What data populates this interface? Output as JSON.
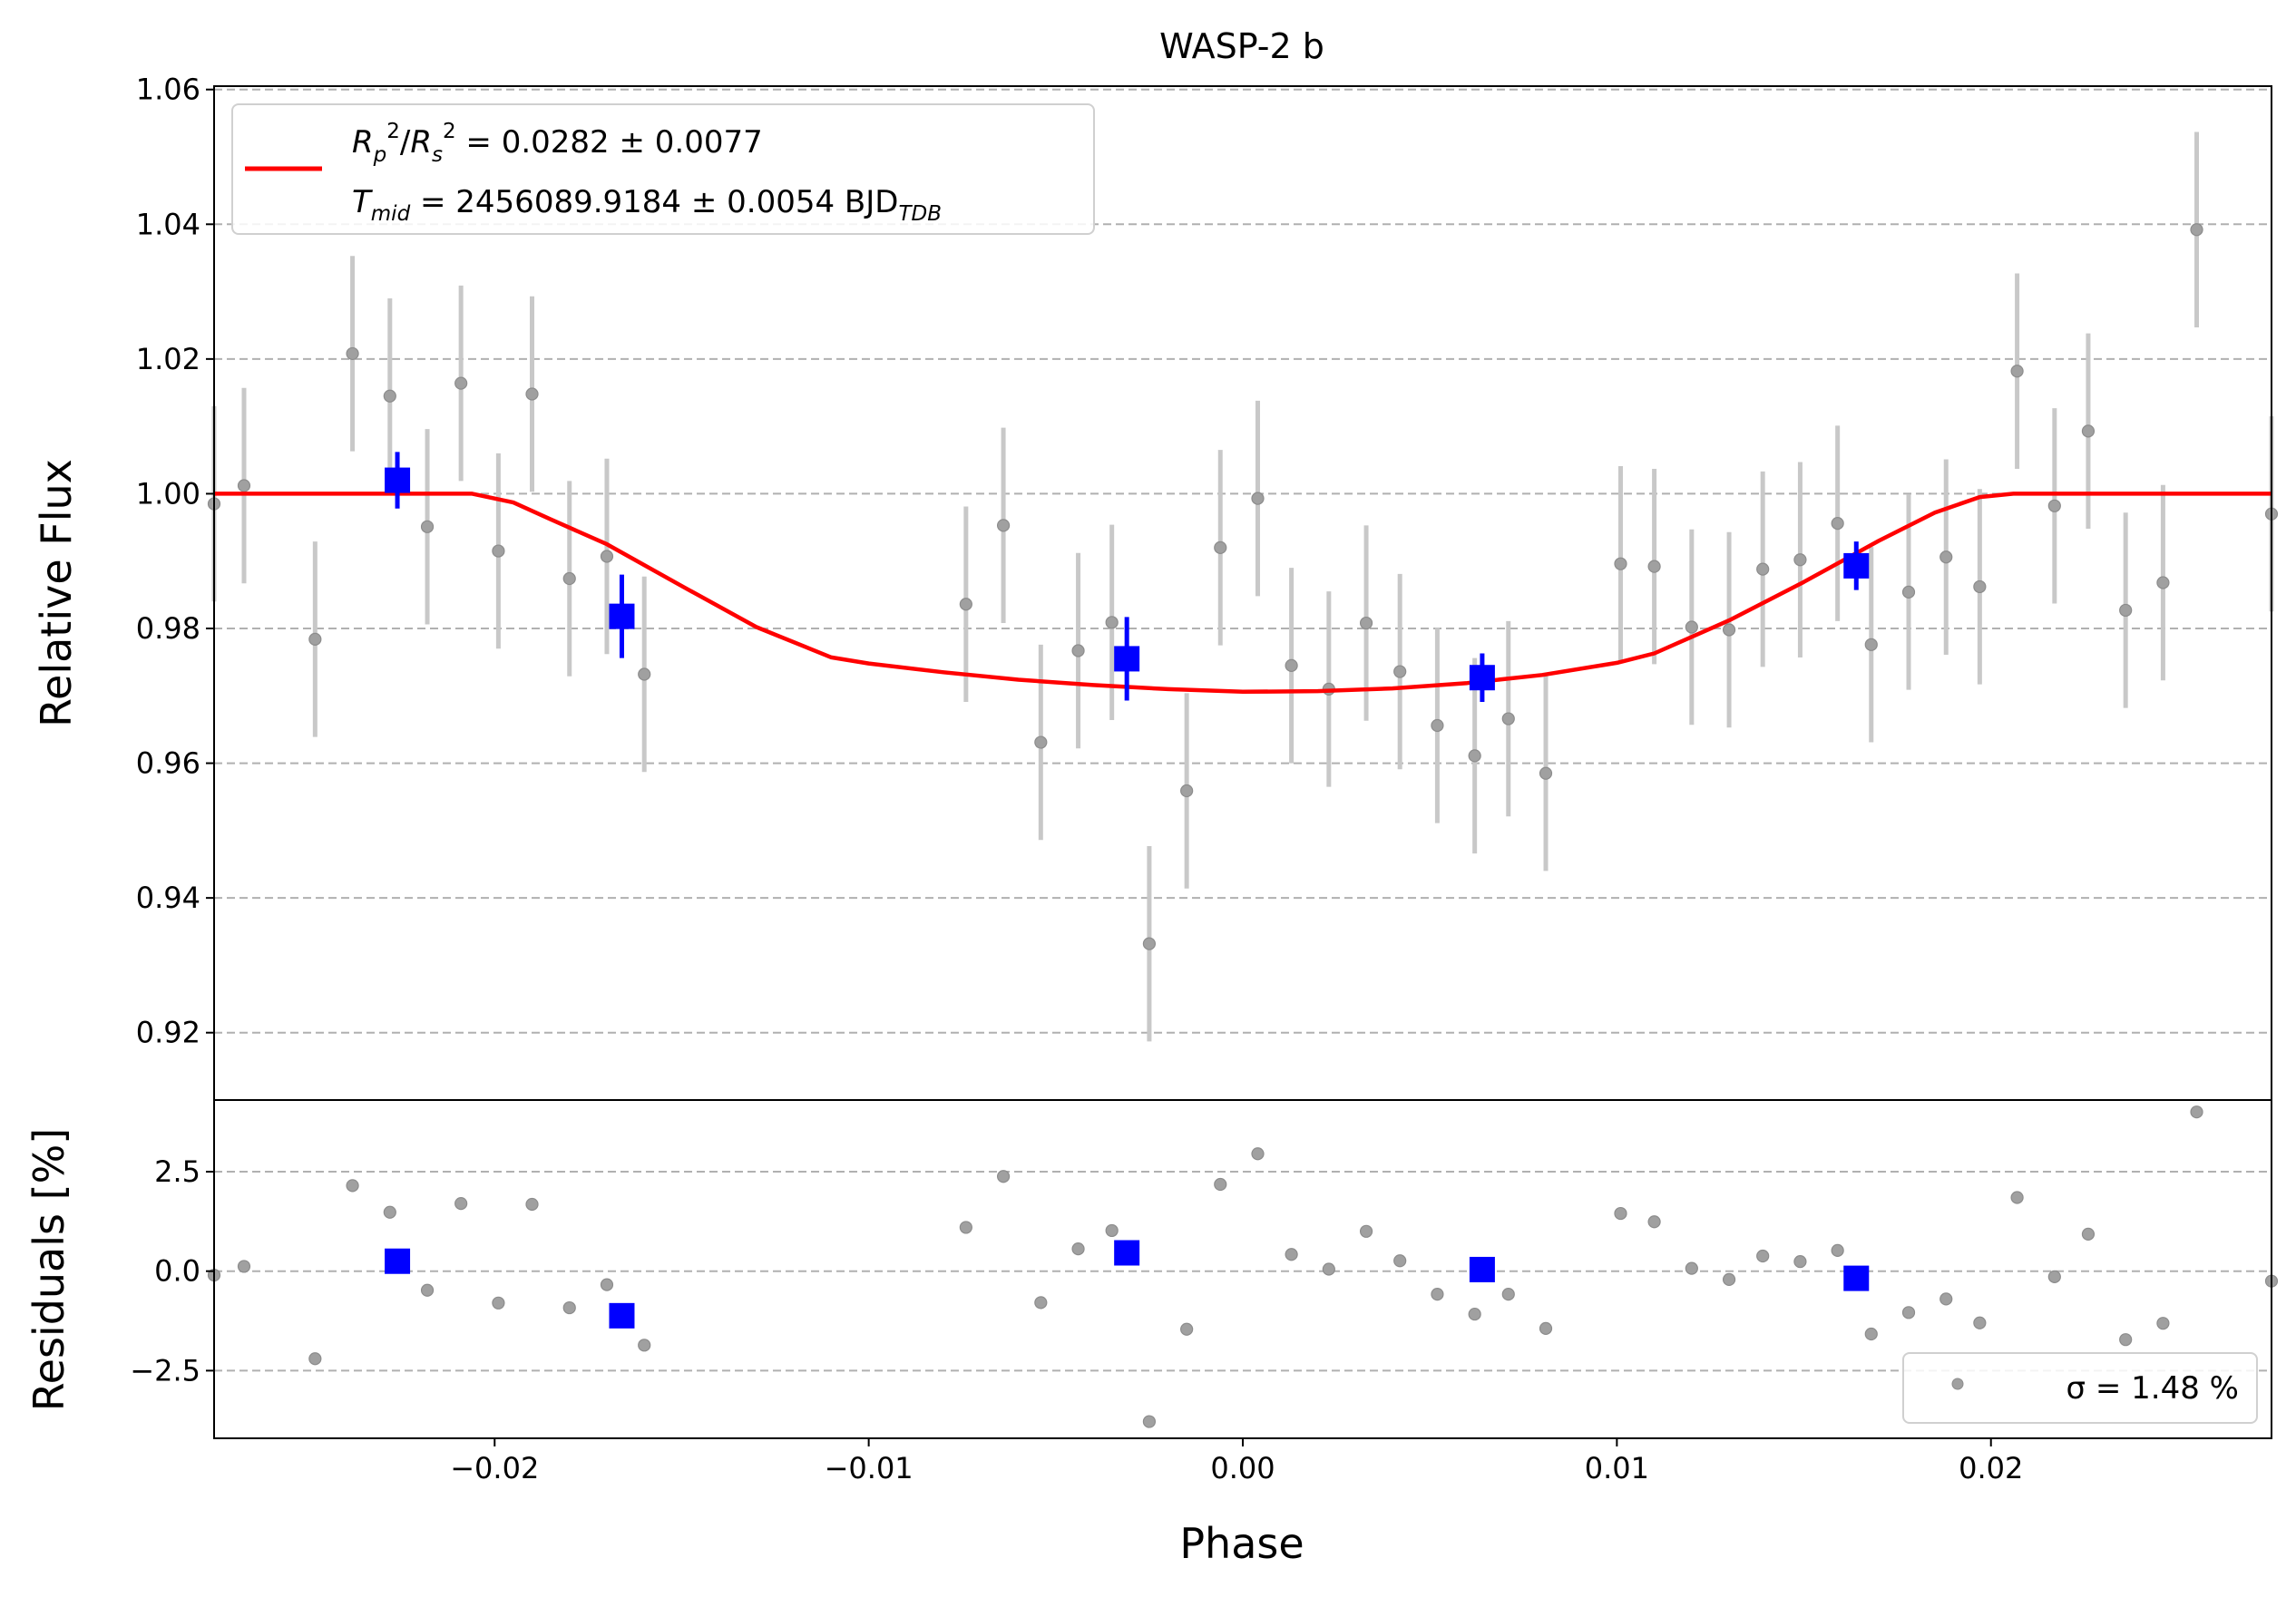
{
  "chart_data": [
    {
      "type": "scatter",
      "panel": "main",
      "title": "WASP-2 b",
      "xlabel": "",
      "ylabel": "Relative Flux",
      "xlim": [
        -0.0275,
        0.0275
      ],
      "ylim": [
        0.91,
        1.0605
      ],
      "yticks": [
        0.92,
        0.94,
        0.96,
        0.98,
        1.0,
        1.02,
        1.04,
        1.06
      ],
      "ytick_labels": [
        "0.92",
        "0.94",
        "0.96",
        "0.98",
        "1.00",
        "1.02",
        "1.04",
        "1.06"
      ],
      "grid": "horizontal dashed",
      "legend_position": "upper-left",
      "legend": {
        "rp_label": "R_p^2/R_s^2 = 0.0282 ± 0.0077",
        "tmid_label": "T_mid = 2456089.9184 ± 0.0054 BJD_TDB"
      },
      "series": [
        {
          "name": "data",
          "style": "gray dots with error bars",
          "color": "#808080",
          "points": [
            {
              "x": -0.0275,
              "y": 0.9985,
              "err": 0.0145
            },
            {
              "x": -0.0267,
              "y": 1.0012,
              "err": 0.0145
            },
            {
              "x": -0.0248,
              "y": 0.9784,
              "err": 0.0145
            },
            {
              "x": -0.0238,
              "y": 1.0208,
              "err": 0.0145
            },
            {
              "x": -0.0228,
              "y": 1.0145,
              "err": 0.0145
            },
            {
              "x": -0.0218,
              "y": 0.9951,
              "err": 0.0145
            },
            {
              "x": -0.0209,
              "y": 1.0164,
              "err": 0.0145
            },
            {
              "x": -0.0199,
              "y": 0.9915,
              "err": 0.0145
            },
            {
              "x": -0.019,
              "y": 1.0148,
              "err": 0.0145
            },
            {
              "x": -0.018,
              "y": 0.9874,
              "err": 0.0145
            },
            {
              "x": -0.017,
              "y": 0.9907,
              "err": 0.0145
            },
            {
              "x": -0.016,
              "y": 0.9732,
              "err": 0.0145
            },
            {
              "x": -0.0074,
              "y": 0.9836,
              "err": 0.0145
            },
            {
              "x": -0.0064,
              "y": 0.9953,
              "err": 0.0145
            },
            {
              "x": -0.0054,
              "y": 0.9631,
              "err": 0.0145
            },
            {
              "x": -0.0044,
              "y": 0.9767,
              "err": 0.0145
            },
            {
              "x": -0.0035,
              "y": 0.9809,
              "err": 0.0145
            },
            {
              "x": -0.0025,
              "y": 0.9332,
              "err": 0.0145
            },
            {
              "x": -0.0015,
              "y": 0.9559,
              "err": 0.0145
            },
            {
              "x": -0.0006,
              "y": 0.992,
              "err": 0.0145
            },
            {
              "x": 0.0004,
              "y": 0.9993,
              "err": 0.0145
            },
            {
              "x": 0.0013,
              "y": 0.9745,
              "err": 0.0145
            },
            {
              "x": 0.0023,
              "y": 0.971,
              "err": 0.0145
            },
            {
              "x": 0.0033,
              "y": 0.9808,
              "err": 0.0145
            },
            {
              "x": 0.0042,
              "y": 0.9736,
              "err": 0.0145
            },
            {
              "x": 0.0052,
              "y": 0.9656,
              "err": 0.0145
            },
            {
              "x": 0.0062,
              "y": 0.9611,
              "err": 0.0145
            },
            {
              "x": 0.0071,
              "y": 0.9666,
              "err": 0.0145
            },
            {
              "x": 0.0081,
              "y": 0.9585,
              "err": 0.0145
            },
            {
              "x": 0.0101,
              "y": 0.9896,
              "err": 0.0145
            },
            {
              "x": 0.011,
              "y": 0.9892,
              "err": 0.0145
            },
            {
              "x": 0.012,
              "y": 0.9802,
              "err": 0.0145
            },
            {
              "x": 0.013,
              "y": 0.9798,
              "err": 0.0145
            },
            {
              "x": 0.0139,
              "y": 0.9888,
              "err": 0.0145
            },
            {
              "x": 0.0149,
              "y": 0.9902,
              "err": 0.0145
            },
            {
              "x": 0.0159,
              "y": 0.9956,
              "err": 0.0145
            },
            {
              "x": 0.0168,
              "y": 0.9776,
              "err": 0.0145
            },
            {
              "x": 0.0178,
              "y": 0.9854,
              "err": 0.0145
            },
            {
              "x": 0.0188,
              "y": 0.9906,
              "err": 0.0145
            },
            {
              "x": 0.0197,
              "y": 0.9862,
              "err": 0.0145
            },
            {
              "x": 0.0207,
              "y": 1.0182,
              "err": 0.0145
            },
            {
              "x": 0.0217,
              "y": 0.9982,
              "err": 0.0145
            },
            {
              "x": 0.0226,
              "y": 1.0093,
              "err": 0.0145
            },
            {
              "x": 0.0236,
              "y": 0.9827,
              "err": 0.0145
            },
            {
              "x": 0.0246,
              "y": 0.9868,
              "err": 0.0145
            },
            {
              "x": 0.0255,
              "y": 1.0392,
              "err": 0.0145
            },
            {
              "x": 0.0275,
              "y": 0.997,
              "err": 0.0145
            }
          ]
        },
        {
          "name": "binned",
          "style": "blue squares with error bars",
          "color": "#0000ff",
          "points": [
            {
              "x": -0.0226,
              "y": 1.002,
              "err": 0.0042
            },
            {
              "x": -0.0166,
              "y": 0.9818,
              "err": 0.0062
            },
            {
              "x": -0.0031,
              "y": 0.9755,
              "err": 0.0062
            },
            {
              "x": 0.0064,
              "y": 0.9727,
              "err": 0.0036
            },
            {
              "x": 0.0164,
              "y": 0.9893,
              "err": 0.0036
            }
          ]
        },
        {
          "name": "model",
          "style": "red line",
          "color": "#ff0000",
          "points": [
            {
              "x": -0.0275,
              "y": 1.0
            },
            {
              "x": -0.0206,
              "y": 1.0
            },
            {
              "x": -0.0195,
              "y": 0.9987
            },
            {
              "x": -0.0185,
              "y": 0.9962
            },
            {
              "x": -0.017,
              "y": 0.9925
            },
            {
              "x": -0.015,
              "y": 0.9863
            },
            {
              "x": -0.013,
              "y": 0.9802
            },
            {
              "x": -0.011,
              "y": 0.9757
            },
            {
              "x": -0.01,
              "y": 0.9748
            },
            {
              "x": -0.008,
              "y": 0.9735
            },
            {
              "x": -0.006,
              "y": 0.9724
            },
            {
              "x": -0.004,
              "y": 0.9716
            },
            {
              "x": -0.002,
              "y": 0.971
            },
            {
              "x": 0.0,
              "y": 0.9706
            },
            {
              "x": 0.002,
              "y": 0.9707
            },
            {
              "x": 0.004,
              "y": 0.9711
            },
            {
              "x": 0.006,
              "y": 0.9719
            },
            {
              "x": 0.008,
              "y": 0.9731
            },
            {
              "x": 0.01,
              "y": 0.9749
            },
            {
              "x": 0.011,
              "y": 0.9763
            },
            {
              "x": 0.013,
              "y": 0.9812
            },
            {
              "x": 0.015,
              "y": 0.9869
            },
            {
              "x": 0.017,
              "y": 0.993
            },
            {
              "x": 0.0185,
              "y": 0.9972
            },
            {
              "x": 0.0197,
              "y": 0.9995
            },
            {
              "x": 0.0206,
              "y": 1.0
            },
            {
              "x": 0.0275,
              "y": 1.0
            }
          ]
        }
      ]
    },
    {
      "type": "scatter",
      "panel": "residuals",
      "xlabel": "Phase",
      "ylabel": "Residuals [%]",
      "xlim": [
        -0.0275,
        0.0275
      ],
      "ylim": [
        -4.2,
        4.3
      ],
      "xticks": [
        -0.02,
        -0.01,
        0.0,
        0.01,
        0.02
      ],
      "xtick_labels": [
        "−0.02",
        "−0.01",
        "0.00",
        "0.01",
        "0.02"
      ],
      "yticks": [
        -2.5,
        0.0,
        2.5
      ],
      "ytick_labels": [
        "−2.5",
        "0.0",
        "2.5"
      ],
      "grid": "horizontal dashed",
      "legend_position": "lower-right",
      "legend": {
        "label": "σ = 1.48 %"
      },
      "series": [
        {
          "name": "residuals",
          "style": "gray dots",
          "color": "#808080",
          "points": [
            {
              "x": -0.0275,
              "y": -0.1
            },
            {
              "x": -0.0267,
              "y": 0.12
            },
            {
              "x": -0.0248,
              "y": -2.2
            },
            {
              "x": -0.0238,
              "y": 2.15
            },
            {
              "x": -0.0228,
              "y": 1.48
            },
            {
              "x": -0.0218,
              "y": -0.48
            },
            {
              "x": -0.0209,
              "y": 1.7
            },
            {
              "x": -0.0199,
              "y": -0.8
            },
            {
              "x": -0.019,
              "y": 1.68
            },
            {
              "x": -0.018,
              "y": -0.92
            },
            {
              "x": -0.017,
              "y": -0.34
            },
            {
              "x": -0.016,
              "y": -1.86
            },
            {
              "x": -0.0074,
              "y": 1.1
            },
            {
              "x": -0.0064,
              "y": 2.38
            },
            {
              "x": -0.0054,
              "y": -0.79
            },
            {
              "x": -0.0044,
              "y": 0.56
            },
            {
              "x": -0.0035,
              "y": 1.02
            },
            {
              "x": -0.0025,
              "y": -3.78
            },
            {
              "x": -0.0015,
              "y": -1.46
            },
            {
              "x": -0.0006,
              "y": 2.18
            },
            {
              "x": 0.0004,
              "y": 2.95
            },
            {
              "x": 0.0013,
              "y": 0.42
            },
            {
              "x": 0.0023,
              "y": 0.05
            },
            {
              "x": 0.0033,
              "y": 1.0
            },
            {
              "x": 0.0042,
              "y": 0.26
            },
            {
              "x": 0.0052,
              "y": -0.58
            },
            {
              "x": 0.0062,
              "y": -1.08
            },
            {
              "x": 0.0071,
              "y": -0.58
            },
            {
              "x": 0.0081,
              "y": -1.44
            },
            {
              "x": 0.0101,
              "y": 1.45
            },
            {
              "x": 0.011,
              "y": 1.24
            },
            {
              "x": 0.012,
              "y": 0.07
            },
            {
              "x": 0.013,
              "y": -0.21
            },
            {
              "x": 0.0139,
              "y": 0.38
            },
            {
              "x": 0.0149,
              "y": 0.24
            },
            {
              "x": 0.0159,
              "y": 0.52
            },
            {
              "x": 0.0168,
              "y": -1.58
            },
            {
              "x": 0.0178,
              "y": -1.04
            },
            {
              "x": 0.0188,
              "y": -0.7
            },
            {
              "x": 0.0197,
              "y": -1.3
            },
            {
              "x": 0.0207,
              "y": 1.85
            },
            {
              "x": 0.0217,
              "y": -0.14
            },
            {
              "x": 0.0226,
              "y": 0.93
            },
            {
              "x": 0.0236,
              "y": -1.72
            },
            {
              "x": 0.0246,
              "y": -1.31
            },
            {
              "x": 0.0255,
              "y": 4.0
            },
            {
              "x": 0.0275,
              "y": -0.25
            }
          ]
        },
        {
          "name": "binned residuals",
          "style": "blue squares",
          "color": "#0000ff",
          "points": [
            {
              "x": -0.0226,
              "y": 0.25
            },
            {
              "x": -0.0166,
              "y": -1.12
            },
            {
              "x": -0.0031,
              "y": 0.46
            },
            {
              "x": 0.0064,
              "y": 0.04
            },
            {
              "x": 0.0164,
              "y": -0.18
            }
          ]
        }
      ]
    }
  ]
}
